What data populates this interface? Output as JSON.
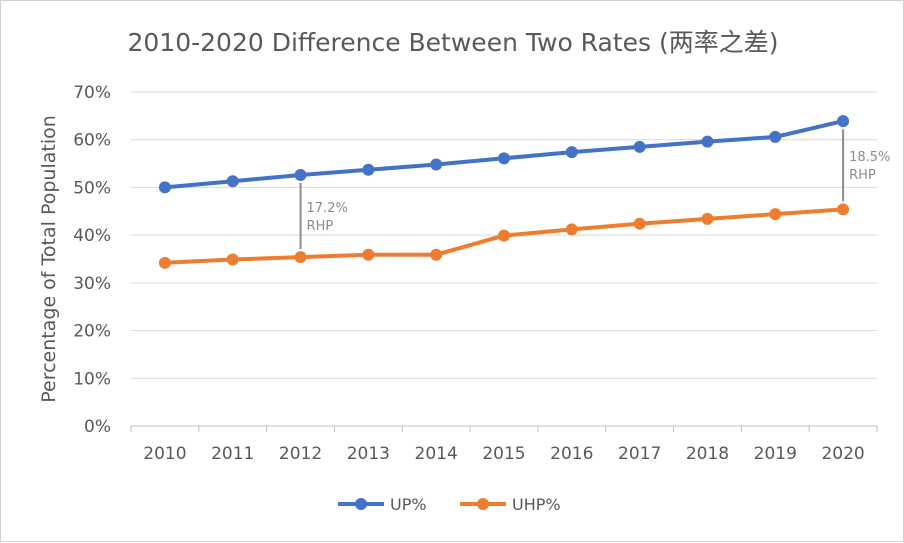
{
  "chart_data": {
    "type": "line",
    "title": "2010-2020 Difference Between Two Rates (两率之差)",
    "ylabel": "Percentage of Total Population",
    "xlabel": "",
    "categories": [
      "2010",
      "2011",
      "2012",
      "2013",
      "2014",
      "2015",
      "2016",
      "2017",
      "2018",
      "2019",
      "2020"
    ],
    "ylim": [
      0,
      70
    ],
    "yticks": [
      "0%",
      "10%",
      "20%",
      "30%",
      "40%",
      "50%",
      "60%",
      "70%"
    ],
    "grid": true,
    "legend_position": "bottom",
    "series": [
      {
        "name": "UP%",
        "color": "#4472c4",
        "values": [
          50.0,
          51.3,
          52.6,
          53.7,
          54.8,
          56.1,
          57.4,
          58.5,
          59.6,
          60.6,
          63.9
        ]
      },
      {
        "name": "UHP%",
        "color": "#ed7d31",
        "values": [
          34.2,
          34.9,
          35.4,
          35.9,
          35.9,
          39.9,
          41.2,
          42.4,
          43.4,
          44.4,
          45.4
        ]
      }
    ],
    "annotations": [
      {
        "category": "2012",
        "from": 35.4,
        "to": 52.6,
        "line1": "17.2%",
        "line2": "RHP"
      },
      {
        "category": "2020",
        "from": 45.4,
        "to": 63.9,
        "line1": "18.5%",
        "line2": "RHP"
      }
    ]
  }
}
